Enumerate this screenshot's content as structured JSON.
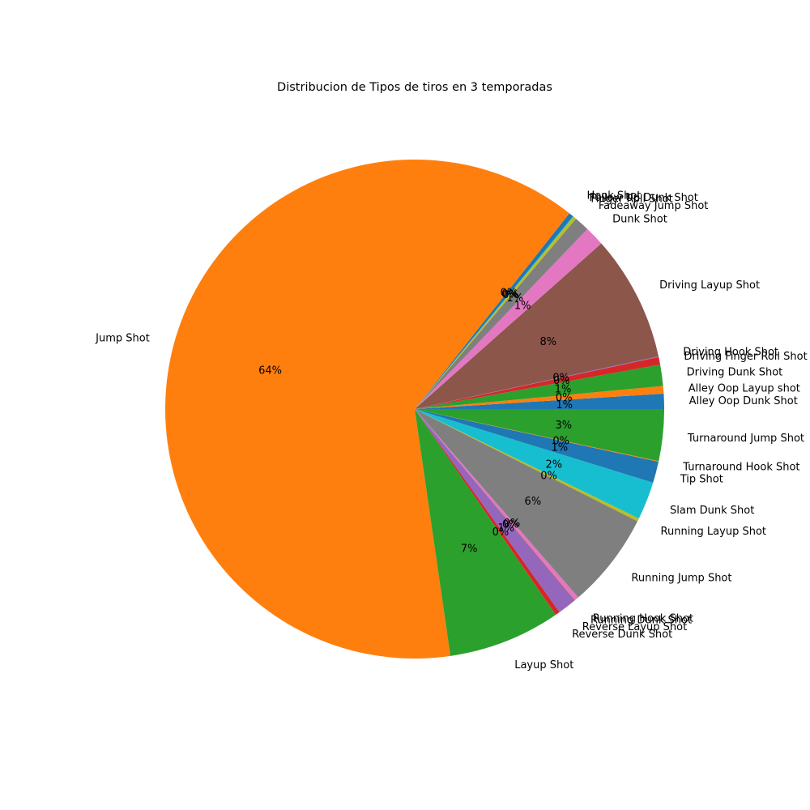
{
  "chart_data": {
    "type": "pie",
    "title": "Distribucion de Tipos de tiros en 3 temporadas",
    "start_angle_deg": 0,
    "direction": "counterclockwise",
    "legend": "none",
    "slices": [
      {
        "label": "Alley Oop Dunk Shot",
        "value": 1.0,
        "pct_label": "1%",
        "color": "#1f77b4"
      },
      {
        "label": "Alley Oop Layup shot",
        "value": 0.5,
        "pct_label": "0%",
        "color": "#ff7f0e"
      },
      {
        "label": "Driving Dunk Shot",
        "value": 1.4,
        "pct_label": "1%",
        "color": "#2ca02c"
      },
      {
        "label": "Driving Finger Roll Shot",
        "value": 0.5,
        "pct_label": "0%",
        "color": "#d62728"
      },
      {
        "label": "Driving Hook Shot",
        "value": 0.05,
        "pct_label": "0%",
        "color": "#9467bd"
      },
      {
        "label": "Driving Layup Shot",
        "value": 8.3,
        "pct_label": "8%",
        "color": "#8c564b"
      },
      {
        "label": "Dunk Shot",
        "value": 1.3,
        "pct_label": "1%",
        "color": "#e377c2"
      },
      {
        "label": "Fadeaway Jump Shot",
        "value": 1.0,
        "pct_label": "1%",
        "color": "#7f7f7f"
      },
      {
        "label": "Finger Roll Shot",
        "value": 0.2,
        "pct_label": "0%",
        "color": "#bcbd22"
      },
      {
        "label": "Follow Up Dunk Shot",
        "value": 0.05,
        "pct_label": "0%",
        "color": "#17becf"
      },
      {
        "label": "Hook Shot",
        "value": 0.3,
        "pct_label": "0%",
        "color": "#1f77b4"
      },
      {
        "label": "Jump Shot",
        "value": 64.0,
        "pct_label": "64%",
        "color": "#ff7f0e"
      },
      {
        "label": "Layup Shot",
        "value": 7.4,
        "pct_label": "7%",
        "color": "#2ca02c"
      },
      {
        "label": "Reverse Dunk Shot",
        "value": 0.3,
        "pct_label": "0%",
        "color": "#d62728"
      },
      {
        "label": "Reverse Layup Shot",
        "value": 1.2,
        "pct_label": "1%",
        "color": "#9467bd"
      },
      {
        "label": "Running Dunk Shot",
        "value": 0.05,
        "pct_label": "0%",
        "color": "#8c564b"
      },
      {
        "label": "Running Hook Shot",
        "value": 0.3,
        "pct_label": "0%",
        "color": "#e377c2"
      },
      {
        "label": "Running Jump Shot",
        "value": 6.3,
        "pct_label": "6%",
        "color": "#7f7f7f"
      },
      {
        "label": "Running Layup Shot",
        "value": 0.2,
        "pct_label": "0%",
        "color": "#bcbd22"
      },
      {
        "label": "Slam Dunk Shot",
        "value": 2.5,
        "pct_label": "2%",
        "color": "#17becf"
      },
      {
        "label": "Tip Shot",
        "value": 1.4,
        "pct_label": "1%",
        "color": "#1f77b4"
      },
      {
        "label": "Turnaround Hook Shot",
        "value": 0.05,
        "pct_label": "0%",
        "color": "#ff7f0e"
      },
      {
        "label": "Turnaround Jump Shot",
        "value": 3.4,
        "pct_label": "3%",
        "color": "#2ca02c"
      }
    ]
  }
}
